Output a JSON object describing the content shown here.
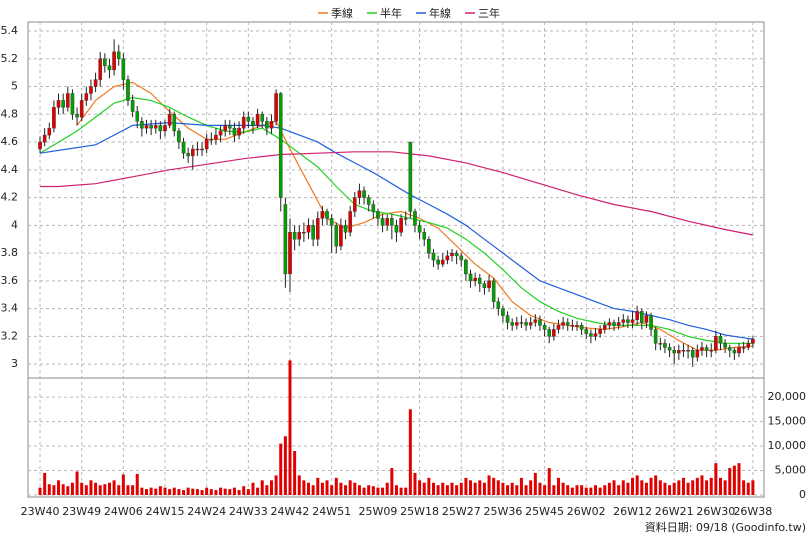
{
  "chart_data": {
    "type": "candlestick",
    "xlim": [
      -2.6,
      156.4
    ],
    "xticks": [
      {
        "value": 0,
        "label": "23W40"
      },
      {
        "value": 9,
        "label": "23W49"
      },
      {
        "value": 18,
        "label": "24W06"
      },
      {
        "value": 27,
        "label": "24W15"
      },
      {
        "value": 36,
        "label": "24W24"
      },
      {
        "value": 45,
        "label": "24W33"
      },
      {
        "value": 54,
        "label": "24W42"
      },
      {
        "value": 63,
        "label": "24W51"
      },
      {
        "value": 73,
        "label": "25W09"
      },
      {
        "value": 82,
        "label": "25W18"
      },
      {
        "value": 91,
        "label": "25W27"
      },
      {
        "value": 100,
        "label": "25W36"
      },
      {
        "value": 109,
        "label": "25W45"
      },
      {
        "value": 118,
        "label": "26W02"
      },
      {
        "value": 128,
        "label": "26W12"
      },
      {
        "value": 137,
        "label": "26W21"
      },
      {
        "value": 146,
        "label": "26W30"
      },
      {
        "value": 154,
        "label": "26W38"
      }
    ],
    "ylim": [
      2.9,
      5.465
    ],
    "yticks": [
      3,
      3.2,
      3.4,
      3.6,
      3.8,
      4,
      4.2,
      4.4,
      4.6,
      4.8,
      5,
      5.2,
      5.4
    ],
    "grid": true,
    "up_color": "#e00000",
    "down_color": "#00a000",
    "candles": {
      "open": [
        4.55,
        4.6,
        4.65,
        4.7,
        4.85,
        4.9,
        4.85,
        4.95,
        4.8,
        4.78,
        4.9,
        4.95,
        5.0,
        5.05,
        5.2,
        5.15,
        5.12,
        5.25,
        5.2,
        5.05,
        4.9,
        4.82,
        4.75,
        4.7,
        4.72,
        4.7,
        4.72,
        4.68,
        4.72,
        4.8,
        4.68,
        4.6,
        4.52,
        4.5,
        4.55,
        4.55,
        4.55,
        4.62,
        4.62,
        4.65,
        4.68,
        4.72,
        4.7,
        4.65,
        4.7,
        4.78,
        4.75,
        4.72,
        4.8,
        4.75,
        4.7,
        4.75,
        4.95,
        4.15,
        3.65,
        3.95,
        3.9,
        3.95,
        3.95,
        4.0,
        3.9,
        4.05,
        4.1,
        4.05,
        4.0,
        3.85,
        4.0,
        3.95,
        4.1,
        4.2,
        4.25,
        4.2,
        4.15,
        4.1,
        4.05,
        4.0,
        4.05,
        4.0,
        3.95,
        4.05,
        4.6,
        4.1,
        4.0,
        3.95,
        3.9,
        3.8,
        3.75,
        3.72,
        3.75,
        3.78,
        3.8,
        3.78,
        3.75,
        3.65,
        3.6,
        3.62,
        3.58,
        3.55,
        3.6,
        3.45,
        3.4,
        3.35,
        3.3,
        3.28,
        3.3,
        3.3,
        3.28,
        3.3,
        3.32,
        3.28,
        3.25,
        3.2,
        3.25,
        3.28,
        3.3,
        3.28,
        3.28,
        3.28,
        3.25,
        3.22,
        3.2,
        3.22,
        3.25,
        3.28,
        3.3,
        3.28,
        3.3,
        3.32,
        3.3,
        3.32,
        3.38,
        3.3,
        3.35,
        3.25,
        3.15,
        3.15,
        3.12,
        3.1,
        3.08,
        3.1,
        3.1,
        3.1,
        3.05,
        3.1,
        3.12,
        3.1,
        3.1,
        3.2,
        3.15,
        3.12,
        3.1,
        3.08,
        3.12,
        3.12,
        3.15
      ],
      "high": [
        4.64,
        4.7,
        4.74,
        4.9,
        4.95,
        4.95,
        5.0,
        4.98,
        4.85,
        4.95,
        5.0,
        5.05,
        5.1,
        5.25,
        5.24,
        5.2,
        5.34,
        5.3,
        5.24,
        5.08,
        4.94,
        4.86,
        4.78,
        4.76,
        4.76,
        4.76,
        4.75,
        4.76,
        4.84,
        4.82,
        4.7,
        4.63,
        4.56,
        4.58,
        4.6,
        4.6,
        4.66,
        4.67,
        4.7,
        4.72,
        4.76,
        4.76,
        4.74,
        4.75,
        4.82,
        4.82,
        4.78,
        4.84,
        4.82,
        4.78,
        4.8,
        4.98,
        4.96,
        4.2,
        4.05,
        4.0,
        4.0,
        4.02,
        4.05,
        4.04,
        4.1,
        4.14,
        4.12,
        4.08,
        4.02,
        4.05,
        4.04,
        4.14,
        4.24,
        4.3,
        4.28,
        4.22,
        4.18,
        4.12,
        4.08,
        4.08,
        4.08,
        4.04,
        4.08,
        4.1,
        4.6,
        4.12,
        4.03,
        3.98,
        3.92,
        3.83,
        3.78,
        3.8,
        3.82,
        3.83,
        3.82,
        3.8,
        3.76,
        3.68,
        3.66,
        3.65,
        3.6,
        3.64,
        3.62,
        3.48,
        3.42,
        3.38,
        3.33,
        3.34,
        3.35,
        3.33,
        3.34,
        3.36,
        3.35,
        3.3,
        3.27,
        3.29,
        3.32,
        3.34,
        3.33,
        3.32,
        3.31,
        3.3,
        3.27,
        3.25,
        3.26,
        3.28,
        3.31,
        3.33,
        3.32,
        3.34,
        3.36,
        3.35,
        3.38,
        3.42,
        3.4,
        3.38,
        3.37,
        3.27,
        3.19,
        3.18,
        3.15,
        3.13,
        3.14,
        3.15,
        3.14,
        3.12,
        3.14,
        3.16,
        3.14,
        3.15,
        3.24,
        3.22,
        3.18,
        3.14,
        3.12,
        3.15,
        3.16,
        3.18,
        3.2
      ],
      "low": [
        4.52,
        4.57,
        4.62,
        4.67,
        4.8,
        4.8,
        4.82,
        4.76,
        4.72,
        4.75,
        4.86,
        4.9,
        4.96,
        5.0,
        5.1,
        5.06,
        5.08,
        5.15,
        4.98,
        4.86,
        4.78,
        4.7,
        4.64,
        4.66,
        4.65,
        4.66,
        4.62,
        4.64,
        4.7,
        4.64,
        4.55,
        4.48,
        4.45,
        4.4,
        4.5,
        4.5,
        4.52,
        4.58,
        4.58,
        4.6,
        4.64,
        4.65,
        4.6,
        4.62,
        4.66,
        4.7,
        4.66,
        4.7,
        4.7,
        4.65,
        4.66,
        4.72,
        4.1,
        3.55,
        3.52,
        3.82,
        3.85,
        3.88,
        3.9,
        3.85,
        3.85,
        4.0,
        4.0,
        3.8,
        3.8,
        3.82,
        3.9,
        3.92,
        4.06,
        4.15,
        4.15,
        4.1,
        4.05,
        4.0,
        3.95,
        3.96,
        3.9,
        3.88,
        3.92,
        4.0,
        4.05,
        3.95,
        3.9,
        3.85,
        3.76,
        3.7,
        3.68,
        3.7,
        3.72,
        3.74,
        3.72,
        3.7,
        3.6,
        3.55,
        3.56,
        3.52,
        3.5,
        3.52,
        3.4,
        3.35,
        3.3,
        3.25,
        3.24,
        3.25,
        3.26,
        3.24,
        3.25,
        3.27,
        3.24,
        3.2,
        3.15,
        3.17,
        3.22,
        3.25,
        3.24,
        3.24,
        3.24,
        3.21,
        3.18,
        3.15,
        3.17,
        3.19,
        3.22,
        3.25,
        3.24,
        3.25,
        3.27,
        3.26,
        3.26,
        3.28,
        3.25,
        3.26,
        3.2,
        3.1,
        3.1,
        3.08,
        3.05,
        3.0,
        3.03,
        3.05,
        3.04,
        2.98,
        3.02,
        3.06,
        3.05,
        3.05,
        3.08,
        3.1,
        3.08,
        3.05,
        3.03,
        3.05,
        3.08,
        3.1,
        3.12
      ],
      "close": [
        4.6,
        4.65,
        4.7,
        4.85,
        4.9,
        4.85,
        4.95,
        4.8,
        4.78,
        4.9,
        4.95,
        5.0,
        5.05,
        5.2,
        5.15,
        5.12,
        5.25,
        5.2,
        5.05,
        4.9,
        4.82,
        4.75,
        4.7,
        4.72,
        4.7,
        4.72,
        4.68,
        4.72,
        4.8,
        4.68,
        4.6,
        4.52,
        4.5,
        4.55,
        4.55,
        4.55,
        4.62,
        4.62,
        4.65,
        4.68,
        4.72,
        4.7,
        4.65,
        4.7,
        4.78,
        4.75,
        4.72,
        4.8,
        4.75,
        4.7,
        4.75,
        4.95,
        4.2,
        3.65,
        3.95,
        3.9,
        3.95,
        3.95,
        4.0,
        3.9,
        4.05,
        4.1,
        4.05,
        4.0,
        3.85,
        4.0,
        3.95,
        4.1,
        4.2,
        4.25,
        4.2,
        4.15,
        4.1,
        4.05,
        4.0,
        4.05,
        4.0,
        3.95,
        4.05,
        4.05,
        4.1,
        4.0,
        3.95,
        3.9,
        3.8,
        3.75,
        3.72,
        3.75,
        3.78,
        3.8,
        3.78,
        3.75,
        3.65,
        3.6,
        3.62,
        3.58,
        3.55,
        3.6,
        3.45,
        3.4,
        3.35,
        3.3,
        3.28,
        3.3,
        3.3,
        3.28,
        3.3,
        3.32,
        3.28,
        3.25,
        3.2,
        3.25,
        3.28,
        3.3,
        3.28,
        3.28,
        3.28,
        3.25,
        3.22,
        3.2,
        3.22,
        3.25,
        3.28,
        3.3,
        3.28,
        3.3,
        3.32,
        3.3,
        3.32,
        3.38,
        3.3,
        3.35,
        3.25,
        3.15,
        3.15,
        3.12,
        3.1,
        3.08,
        3.1,
        3.1,
        3.1,
        3.05,
        3.1,
        3.12,
        3.1,
        3.1,
        3.2,
        3.15,
        3.12,
        3.1,
        3.08,
        3.12,
        3.12,
        3.15,
        3.18
      ]
    },
    "lines": [
      {
        "name": "季線",
        "color": "#f07820",
        "x": [
          8,
          12,
          16,
          20,
          24,
          28,
          32,
          36,
          40,
          44,
          48,
          51,
          54,
          58,
          62,
          66,
          70,
          74,
          78,
          82,
          86,
          90,
          94,
          98,
          102,
          106,
          110,
          114,
          118,
          122,
          126,
          130,
          134,
          138,
          142,
          146,
          150,
          154
        ],
        "values": [
          4.72,
          4.9,
          5.0,
          5.03,
          4.95,
          4.82,
          4.7,
          4.62,
          4.62,
          4.67,
          4.72,
          4.75,
          4.55,
          4.3,
          4.05,
          3.98,
          4.02,
          4.08,
          4.1,
          4.05,
          3.98,
          3.85,
          3.72,
          3.62,
          3.45,
          3.35,
          3.3,
          3.28,
          3.26,
          3.25,
          3.27,
          3.3,
          3.25,
          3.17,
          3.1,
          3.1,
          3.12,
          3.13
        ]
      },
      {
        "name": "半年",
        "color": "#20d020",
        "x": [
          0,
          4,
          8,
          12,
          16,
          20,
          24,
          28,
          32,
          36,
          40,
          44,
          48,
          52,
          56,
          60,
          64,
          68,
          72,
          76,
          80,
          84,
          88,
          92,
          96,
          100,
          104,
          108,
          112,
          116,
          120,
          124,
          128,
          132,
          136,
          140,
          144,
          148,
          152,
          154
        ],
        "values": [
          4.52,
          4.6,
          4.68,
          4.78,
          4.88,
          4.92,
          4.9,
          4.85,
          4.78,
          4.72,
          4.68,
          4.67,
          4.7,
          4.62,
          4.52,
          4.42,
          4.28,
          4.15,
          4.1,
          4.08,
          4.05,
          4.02,
          3.98,
          3.9,
          3.8,
          3.68,
          3.55,
          3.45,
          3.38,
          3.33,
          3.3,
          3.28,
          3.28,
          3.28,
          3.25,
          3.2,
          3.17,
          3.15,
          3.15,
          3.15
        ]
      },
      {
        "name": "年線",
        "color": "#2060e0",
        "x": [
          0,
          6,
          12,
          16,
          20,
          24,
          28,
          32,
          36,
          40,
          44,
          48,
          52,
          56,
          60,
          64,
          68,
          72,
          76,
          80,
          84,
          88,
          92,
          96,
          100,
          104,
          108,
          112,
          116,
          120,
          124,
          128,
          132,
          136,
          140,
          144,
          148,
          152,
          154
        ],
        "values": [
          4.52,
          4.55,
          4.58,
          4.65,
          4.72,
          4.73,
          4.74,
          4.73,
          4.72,
          4.72,
          4.72,
          4.72,
          4.7,
          4.65,
          4.6,
          4.52,
          4.45,
          4.38,
          4.3,
          4.22,
          4.15,
          4.08,
          4.0,
          3.9,
          3.8,
          3.7,
          3.6,
          3.55,
          3.5,
          3.45,
          3.4,
          3.38,
          3.35,
          3.32,
          3.28,
          3.25,
          3.21,
          3.19,
          3.18
        ]
      },
      {
        "name": "三年",
        "color": "#d02070",
        "x": [
          0,
          4,
          12,
          20,
          28,
          36,
          44,
          52,
          60,
          68,
          76,
          84,
          92,
          100,
          108,
          116,
          124,
          132,
          140,
          148,
          154
        ],
        "values": [
          4.28,
          4.28,
          4.3,
          4.35,
          4.4,
          4.44,
          4.48,
          4.51,
          4.52,
          4.53,
          4.53,
          4.5,
          4.45,
          4.38,
          4.3,
          4.22,
          4.15,
          4.1,
          4.03,
          3.97,
          3.93
        ]
      }
    ],
    "volume": {
      "color": "#e00000",
      "ylim": [
        0,
        23900
      ],
      "yticks": [
        0,
        {
          "value": 5000,
          "label": "5,000"
        },
        {
          "value": 10000,
          "label": "10,000"
        },
        {
          "value": 15000,
          "label": "15,000"
        },
        {
          "value": 20000,
          "label": "20,000"
        }
      ],
      "values": [
        1500,
        4500,
        2200,
        2000,
        3000,
        2200,
        1800,
        2500,
        4800,
        2500,
        2000,
        3000,
        2500,
        2000,
        2200,
        2500,
        3000,
        2000,
        4200,
        2000,
        2000,
        4300,
        1500,
        1200,
        1500,
        1300,
        1800,
        1500,
        1200,
        1500,
        1200,
        1000,
        1500,
        1300,
        1200,
        1000,
        1500,
        1200,
        1000,
        1500,
        1300,
        1200,
        1500,
        1000,
        1800,
        1200,
        2500,
        1500,
        3000,
        2000,
        3000,
        4000,
        10500,
        12000,
        27500,
        9000,
        4000,
        3000,
        2500,
        2000,
        3500,
        2500,
        3000,
        2000,
        3500,
        2500,
        2000,
        3000,
        2500,
        2000,
        1500,
        2000,
        1800,
        1500,
        1500,
        2500,
        5500,
        2000,
        1500,
        1500,
        17500,
        4500,
        3000,
        2500,
        3500,
        2500,
        2000,
        2500,
        2000,
        2500,
        2000,
        2500,
        3500,
        3000,
        2500,
        3000,
        2500,
        4000,
        3500,
        3000,
        2500,
        2000,
        2500,
        2000,
        3500,
        2000,
        3000,
        4500,
        2500,
        2000,
        5500,
        2000,
        3500,
        2500,
        2000,
        1500,
        2000,
        2000,
        1500,
        1500,
        2000,
        1500,
        2000,
        2500,
        3000,
        2000,
        3000,
        2500,
        3500,
        4000,
        3000,
        2500,
        3500,
        4000,
        3000,
        2500,
        2000,
        2500,
        3000,
        3500,
        2500,
        3000,
        3500,
        4000,
        3000,
        3500,
        6500,
        3500,
        3000,
        5500,
        6000,
        6500,
        3000,
        2500,
        3000
      ]
    },
    "footer": "資料日期: 09/18 (Goodinfo.tw)"
  }
}
